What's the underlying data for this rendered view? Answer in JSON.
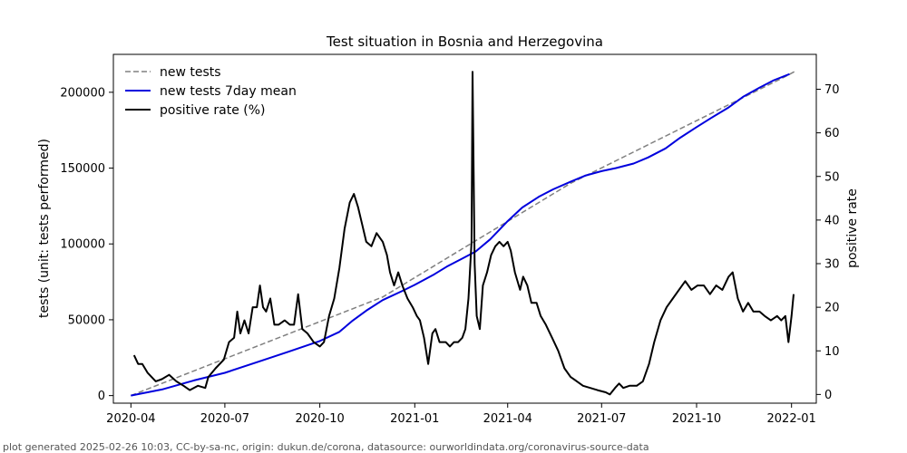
{
  "chart_data": {
    "type": "line",
    "title": "Test situation in Bosnia and Herzegovina",
    "ylabel": "tests (unit: tests performed)",
    "y2label": "positive rate",
    "footer": "plot generated 2025-02-26 10:03, CC-by-sa-nc, origin: dukun.de/corona, datasource: ourworldindata.org/coronavirus-source-data",
    "xlim": [
      "2020-03-15",
      "2022-01-25"
    ],
    "ylim": [
      -5000,
      225000
    ],
    "y2lim": [
      -2,
      78
    ],
    "legend_position": "top-left",
    "x_ticks": [
      {
        "date": "2020-04-01",
        "label": "2020-04"
      },
      {
        "date": "2020-07-01",
        "label": "2020-07"
      },
      {
        "date": "2020-10-01",
        "label": "2020-10"
      },
      {
        "date": "2021-01-01",
        "label": "2021-01"
      },
      {
        "date": "2021-04-01",
        "label": "2021-04"
      },
      {
        "date": "2021-07-01",
        "label": "2021-07"
      },
      {
        "date": "2021-10-01",
        "label": "2021-10"
      },
      {
        "date": "2022-01-01",
        "label": "2022-01"
      }
    ],
    "y_ticks": [
      {
        "value": 0,
        "label": "0"
      },
      {
        "value": 50000,
        "label": "50000"
      },
      {
        "value": 100000,
        "label": "100000"
      },
      {
        "value": 150000,
        "label": "150000"
      },
      {
        "value": 200000,
        "label": "200000"
      }
    ],
    "y2_ticks": [
      {
        "value": 0,
        "label": "0"
      },
      {
        "value": 10,
        "label": "10"
      },
      {
        "value": 20,
        "label": "20"
      },
      {
        "value": 30,
        "label": "30"
      },
      {
        "value": 40,
        "label": "40"
      },
      {
        "value": 50,
        "label": "50"
      },
      {
        "value": 60,
        "label": "60"
      },
      {
        "value": 70,
        "label": "70"
      }
    ],
    "series": [
      {
        "name": "new tests",
        "axis": "left",
        "color": "#808080",
        "dash": true,
        "width": 1.5,
        "points": [
          [
            "2020-04-01",
            0
          ],
          [
            "2020-12-01",
            65000
          ],
          [
            "2021-06-01",
            140000
          ],
          [
            "2021-12-25",
            210000
          ],
          [
            "2022-01-05",
            214000
          ]
        ]
      },
      {
        "name": "new tests 7day mean",
        "axis": "left",
        "color": "#0000dd",
        "dash": false,
        "width": 2,
        "points": [
          [
            "2020-04-01",
            0
          ],
          [
            "2020-05-01",
            4000
          ],
          [
            "2020-06-01",
            10000
          ],
          [
            "2020-07-01",
            15000
          ],
          [
            "2020-08-01",
            22000
          ],
          [
            "2020-09-01",
            29000
          ],
          [
            "2020-10-01",
            36000
          ],
          [
            "2020-10-20",
            42000
          ],
          [
            "2020-11-01",
            49000
          ],
          [
            "2020-11-15",
            56000
          ],
          [
            "2020-12-01",
            63000
          ],
          [
            "2020-12-20",
            69000
          ],
          [
            "2021-01-01",
            73000
          ],
          [
            "2021-01-20",
            80000
          ],
          [
            "2021-02-01",
            85000
          ],
          [
            "2021-02-15",
            90000
          ],
          [
            "2021-03-01",
            95000
          ],
          [
            "2021-03-15",
            103000
          ],
          [
            "2021-04-01",
            115000
          ],
          [
            "2021-04-15",
            124000
          ],
          [
            "2021-05-01",
            131000
          ],
          [
            "2021-05-15",
            136000
          ],
          [
            "2021-06-01",
            141000
          ],
          [
            "2021-06-15",
            145000
          ],
          [
            "2021-07-01",
            148000
          ],
          [
            "2021-07-15",
            150000
          ],
          [
            "2021-08-01",
            153000
          ],
          [
            "2021-08-15",
            157000
          ],
          [
            "2021-09-01",
            163000
          ],
          [
            "2021-09-15",
            170000
          ],
          [
            "2021-10-01",
            177000
          ],
          [
            "2021-10-15",
            183000
          ],
          [
            "2021-11-01",
            190000
          ],
          [
            "2021-11-15",
            197000
          ],
          [
            "2021-12-01",
            203000
          ],
          [
            "2021-12-15",
            208000
          ],
          [
            "2021-12-30",
            212000
          ]
        ]
      },
      {
        "name": "positive rate (%)",
        "axis": "right",
        "color": "#000000",
        "dash": false,
        "width": 2,
        "points": [
          [
            "2020-04-04",
            9
          ],
          [
            "2020-04-08",
            7
          ],
          [
            "2020-04-12",
            7
          ],
          [
            "2020-04-17",
            5
          ],
          [
            "2020-04-25",
            3
          ],
          [
            "2020-05-01",
            3.5
          ],
          [
            "2020-05-08",
            4.5
          ],
          [
            "2020-05-15",
            3
          ],
          [
            "2020-05-22",
            2
          ],
          [
            "2020-05-28",
            1
          ],
          [
            "2020-06-05",
            2
          ],
          [
            "2020-06-12",
            1.5
          ],
          [
            "2020-06-15",
            4
          ],
          [
            "2020-06-22",
            6
          ],
          [
            "2020-06-30",
            8
          ],
          [
            "2020-07-05",
            12
          ],
          [
            "2020-07-10",
            13
          ],
          [
            "2020-07-13",
            19
          ],
          [
            "2020-07-16",
            14
          ],
          [
            "2020-07-20",
            17
          ],
          [
            "2020-07-24",
            14
          ],
          [
            "2020-07-28",
            20
          ],
          [
            "2020-08-01",
            20
          ],
          [
            "2020-08-04",
            25
          ],
          [
            "2020-08-07",
            20
          ],
          [
            "2020-08-10",
            19
          ],
          [
            "2020-08-14",
            22
          ],
          [
            "2020-08-18",
            16
          ],
          [
            "2020-08-22",
            16
          ],
          [
            "2020-08-28",
            17
          ],
          [
            "2020-09-02",
            16
          ],
          [
            "2020-09-06",
            16
          ],
          [
            "2020-09-10",
            23
          ],
          [
            "2020-09-14",
            15
          ],
          [
            "2020-09-19",
            14
          ],
          [
            "2020-09-25",
            12
          ],
          [
            "2020-10-01",
            11
          ],
          [
            "2020-10-05",
            12
          ],
          [
            "2020-10-10",
            18
          ],
          [
            "2020-10-15",
            22
          ],
          [
            "2020-10-20",
            29
          ],
          [
            "2020-10-25",
            38
          ],
          [
            "2020-10-30",
            44
          ],
          [
            "2020-11-03",
            46
          ],
          [
            "2020-11-07",
            43
          ],
          [
            "2020-11-11",
            39
          ],
          [
            "2020-11-15",
            35
          ],
          [
            "2020-11-20",
            34
          ],
          [
            "2020-11-25",
            37
          ],
          [
            "2020-12-01",
            35
          ],
          [
            "2020-12-05",
            32
          ],
          [
            "2020-12-08",
            28
          ],
          [
            "2020-12-12",
            25
          ],
          [
            "2020-12-16",
            28
          ],
          [
            "2020-12-20",
            25
          ],
          [
            "2020-12-25",
            22
          ],
          [
            "2020-12-30",
            20
          ],
          [
            "2021-01-03",
            18
          ],
          [
            "2021-01-06",
            17
          ],
          [
            "2021-01-10",
            13
          ],
          [
            "2021-01-14",
            7
          ],
          [
            "2021-01-18",
            14
          ],
          [
            "2021-01-21",
            15
          ],
          [
            "2021-01-25",
            12
          ],
          [
            "2021-01-31",
            12
          ],
          [
            "2021-02-04",
            11
          ],
          [
            "2021-02-08",
            12
          ],
          [
            "2021-02-12",
            12
          ],
          [
            "2021-02-16",
            13
          ],
          [
            "2021-02-19",
            15
          ],
          [
            "2021-02-22",
            22
          ],
          [
            "2021-02-25",
            35
          ],
          [
            "2021-02-26",
            74
          ],
          [
            "2021-02-28",
            30
          ],
          [
            "2021-03-02",
            18
          ],
          [
            "2021-03-05",
            15
          ],
          [
            "2021-03-08",
            25
          ],
          [
            "2021-03-12",
            28
          ],
          [
            "2021-03-16",
            32
          ],
          [
            "2021-03-20",
            34
          ],
          [
            "2021-03-24",
            35
          ],
          [
            "2021-03-28",
            34
          ],
          [
            "2021-04-01",
            35
          ],
          [
            "2021-04-04",
            33
          ],
          [
            "2021-04-08",
            28
          ],
          [
            "2021-04-13",
            24
          ],
          [
            "2021-04-16",
            27
          ],
          [
            "2021-04-20",
            25
          ],
          [
            "2021-04-24",
            21
          ],
          [
            "2021-04-29",
            21
          ],
          [
            "2021-05-03",
            18
          ],
          [
            "2021-05-08",
            16
          ],
          [
            "2021-05-14",
            13
          ],
          [
            "2021-05-20",
            10
          ],
          [
            "2021-05-26",
            6
          ],
          [
            "2021-06-01",
            4
          ],
          [
            "2021-06-07",
            3
          ],
          [
            "2021-06-13",
            2
          ],
          [
            "2021-06-20",
            1.5
          ],
          [
            "2021-06-27",
            1
          ],
          [
            "2021-07-05",
            0.5
          ],
          [
            "2021-07-09",
            0
          ],
          [
            "2021-07-14",
            1.5
          ],
          [
            "2021-07-18",
            2.5
          ],
          [
            "2021-07-22",
            1.5
          ],
          [
            "2021-07-28",
            2
          ],
          [
            "2021-08-04",
            2
          ],
          [
            "2021-08-10",
            3
          ],
          [
            "2021-08-16",
            7
          ],
          [
            "2021-08-21",
            12
          ],
          [
            "2021-08-27",
            17
          ],
          [
            "2021-09-02",
            20
          ],
          [
            "2021-09-08",
            22
          ],
          [
            "2021-09-14",
            24
          ],
          [
            "2021-09-20",
            26
          ],
          [
            "2021-09-26",
            24
          ],
          [
            "2021-10-02",
            25
          ],
          [
            "2021-10-08",
            25
          ],
          [
            "2021-10-14",
            23
          ],
          [
            "2021-10-20",
            25
          ],
          [
            "2021-10-26",
            24
          ],
          [
            "2021-11-01",
            27
          ],
          [
            "2021-11-05",
            28
          ],
          [
            "2021-11-10",
            22
          ],
          [
            "2021-11-15",
            19
          ],
          [
            "2021-11-20",
            21
          ],
          [
            "2021-11-25",
            19
          ],
          [
            "2021-12-01",
            19
          ],
          [
            "2021-12-06",
            18
          ],
          [
            "2021-12-12",
            17
          ],
          [
            "2021-12-18",
            18
          ],
          [
            "2021-12-22",
            17
          ],
          [
            "2021-12-26",
            18
          ],
          [
            "2021-12-29",
            12
          ],
          [
            "2022-01-01",
            18
          ],
          [
            "2022-01-03",
            23
          ]
        ]
      }
    ]
  }
}
